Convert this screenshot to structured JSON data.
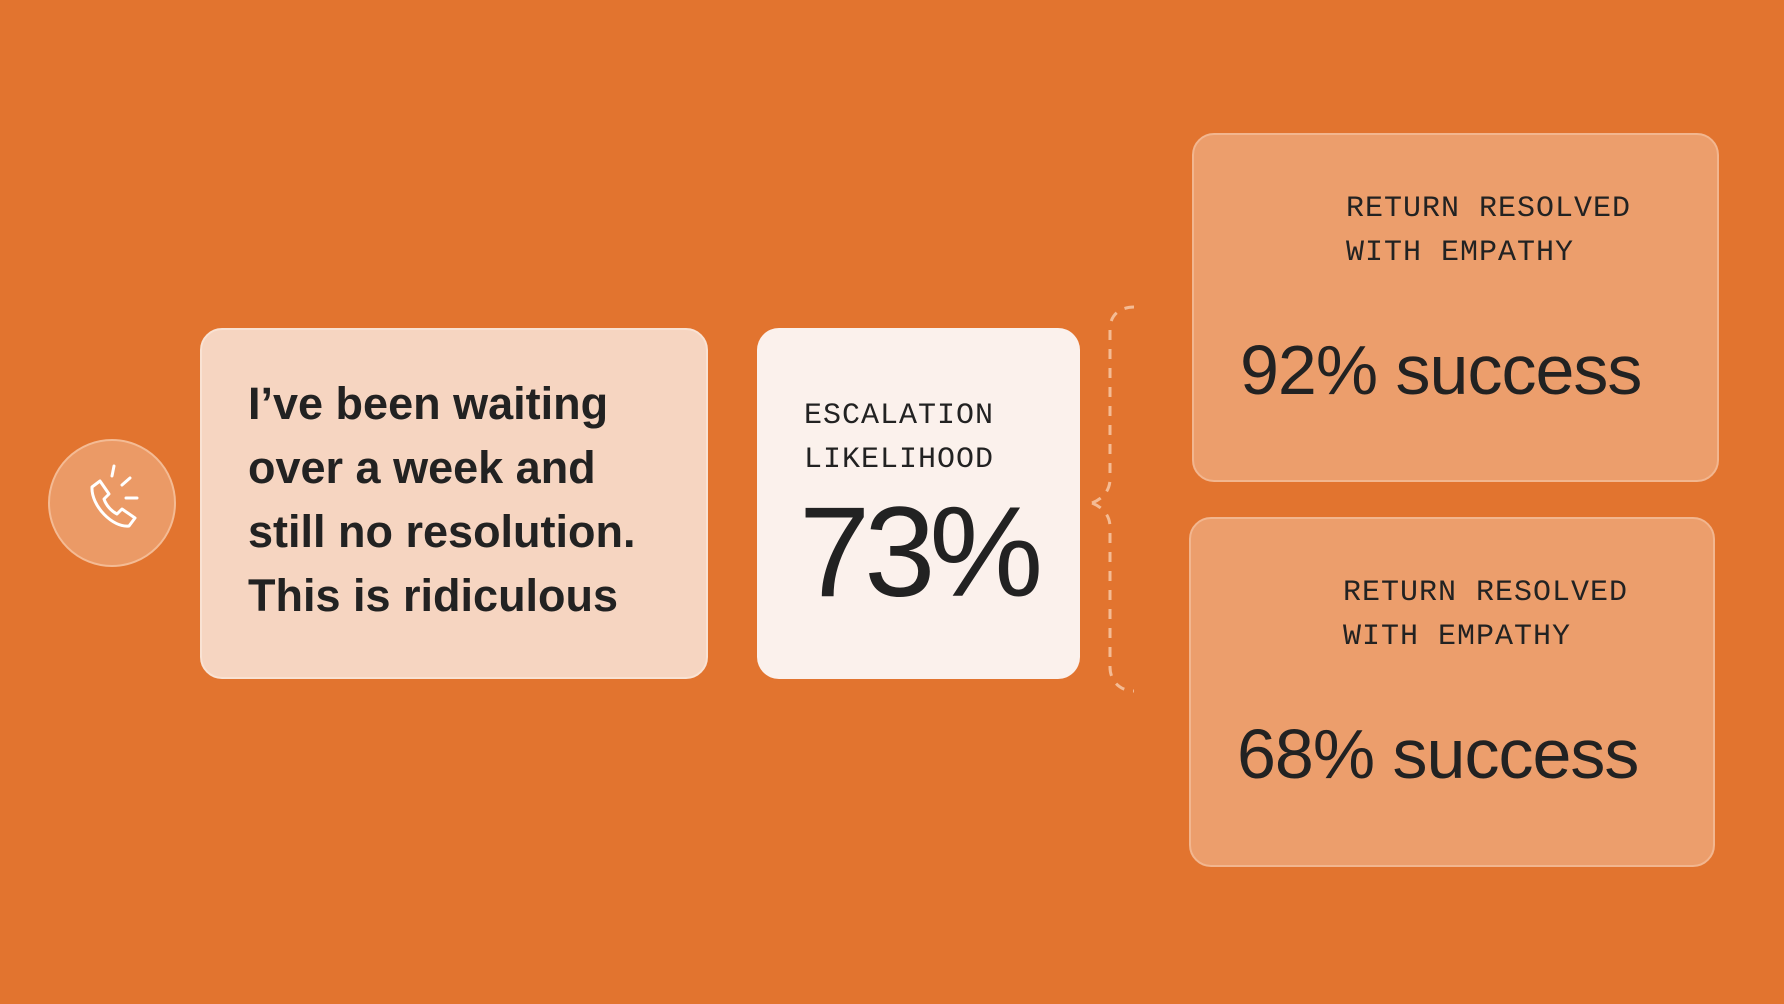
{
  "quote": {
    "lines": [
      "I’ve been waiting",
      "over a week and",
      "still no resolution.",
      "This is ridiculous"
    ]
  },
  "escalation": {
    "label": "ESCALATION LIKELIHOOD",
    "value": "73%"
  },
  "outcomes": [
    {
      "label": "RETURN RESOLVED WITH EMPATHY",
      "value": "92% success"
    },
    {
      "label": "RETURN RESOLVED WITH EMPATHY",
      "value": "68% success"
    }
  ]
}
